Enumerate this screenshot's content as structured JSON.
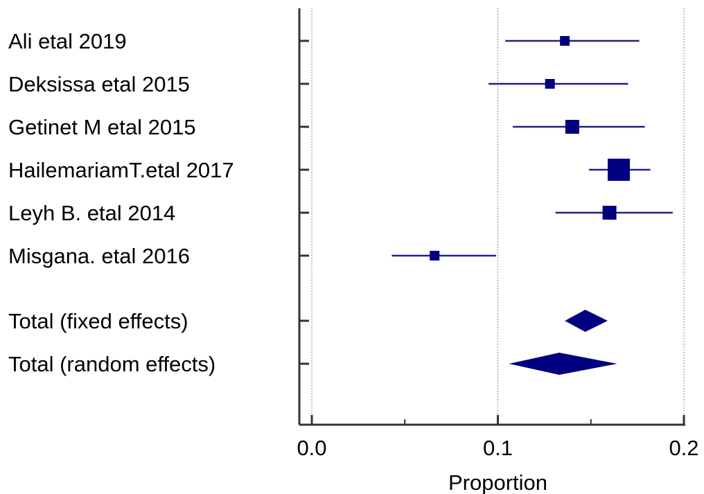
{
  "chart_data": {
    "type": "forest",
    "xlabel": "Proportion",
    "ylabel": "",
    "title": "",
    "xlim": [
      0.0,
      0.2
    ],
    "xticks": [
      {
        "value": 0.0,
        "label": "0.0"
      },
      {
        "value": 0.1,
        "label": "0.1"
      },
      {
        "value": 0.2,
        "label": "0.2"
      }
    ],
    "minor_xticks": [
      0.05,
      0.15
    ],
    "grid": "vertical dotted at major ticks",
    "studies": [
      {
        "label": "Ali etal 2019",
        "estimate": 0.136,
        "lower": 0.104,
        "upper": 0.176,
        "weight": "small"
      },
      {
        "label": "Deksissa etal 2015",
        "estimate": 0.128,
        "lower": 0.095,
        "upper": 0.17,
        "weight": "small"
      },
      {
        "label": "Getinet M etal 2015",
        "estimate": 0.14,
        "lower": 0.108,
        "upper": 0.179,
        "weight": "medium"
      },
      {
        "label": "HailemariamT.etal 2017",
        "estimate": 0.165,
        "lower": 0.149,
        "upper": 0.182,
        "weight": "large"
      },
      {
        "label": "Leyh B. etal 2014",
        "estimate": 0.16,
        "lower": 0.131,
        "upper": 0.194,
        "weight": "medium"
      },
      {
        "label": "Misgana. etal 2016",
        "estimate": 0.066,
        "lower": 0.043,
        "upper": 0.099,
        "weight": "small"
      }
    ],
    "totals": [
      {
        "label": "Total (fixed effects)",
        "estimate": 0.147,
        "lower": 0.136,
        "upper": 0.159
      },
      {
        "label": "Total (random effects)",
        "estimate": 0.133,
        "lower": 0.106,
        "upper": 0.164
      }
    ],
    "colors": {
      "marker": "#000080",
      "ci_line": "#1F1F8C",
      "axis": "#333333",
      "grid": "#808080"
    }
  }
}
